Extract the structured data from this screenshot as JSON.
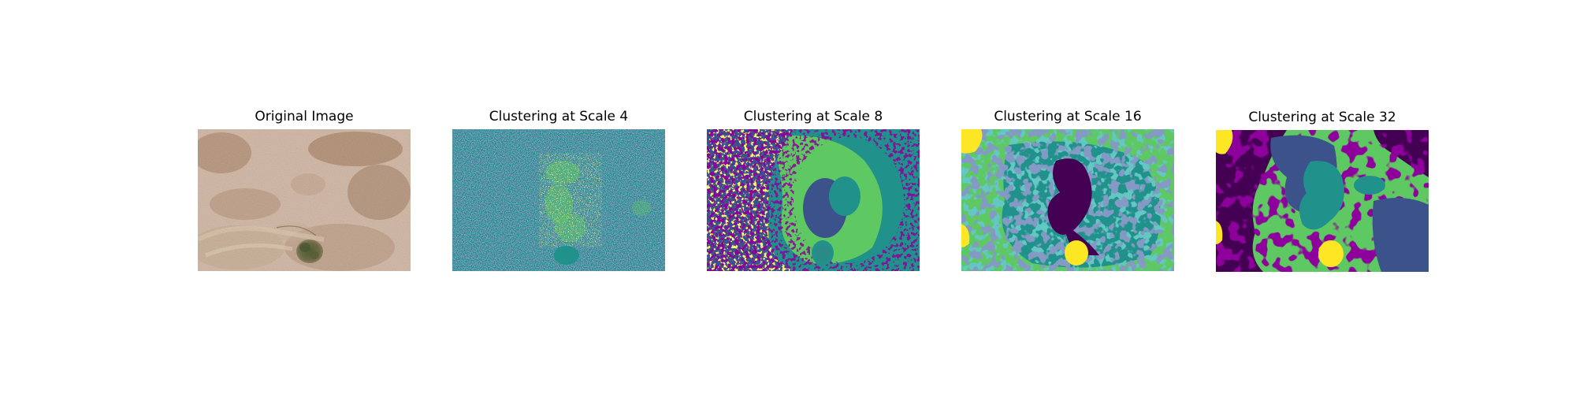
{
  "figure": {
    "panels": [
      {
        "title": "Original Image",
        "kind": "photo"
      },
      {
        "title": "Clustering at Scale 4",
        "kind": "cluster-map"
      },
      {
        "title": "Clustering at Scale 8",
        "kind": "cluster-map"
      },
      {
        "title": "Clustering at Scale 16",
        "kind": "cluster-map"
      },
      {
        "title": "Clustering at Scale 32",
        "kind": "cluster-map"
      }
    ]
  },
  "colors": {
    "viridis_dark_purple": "#440154",
    "viridis_blue": "#3b528b",
    "viridis_teal": "#21918c",
    "viridis_green": "#5ec962",
    "viridis_yellow": "#fde725",
    "photo_soil": "#d2b7a4",
    "photo_grass": "#b08f73",
    "photo_shrub": "#6b6c44"
  }
}
